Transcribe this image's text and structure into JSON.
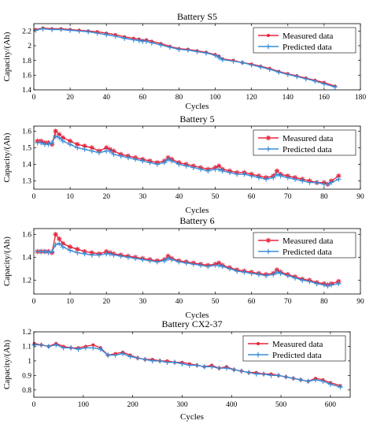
{
  "chart_data": [
    {
      "type": "line",
      "title": "Battery S5",
      "xlabel": "Cycles",
      "ylabel": "Capacity/(Ah)",
      "xlim": [
        0,
        180
      ],
      "ylim": [
        1.4,
        2.3
      ],
      "xticks": [
        0,
        20,
        40,
        60,
        80,
        100,
        120,
        140,
        160,
        180
      ],
      "yticks": [
        1.4,
        1.6,
        1.8,
        2.0,
        2.2
      ],
      "ytick_labels": [
        "1.4",
        "1.6",
        "1.8",
        "2",
        "2.2"
      ],
      "legend": {
        "position": "top-right",
        "entries": [
          "Measured data",
          "Predicted data"
        ]
      },
      "series": [
        {
          "name": "Measured data",
          "color": "#e8253a",
          "marker": "dot",
          "x": [
            1,
            5,
            10,
            15,
            20,
            25,
            30,
            35,
            40,
            45,
            50,
            55,
            58,
            60,
            62,
            65,
            70,
            75,
            80,
            85,
            90,
            95,
            100,
            102,
            104,
            110,
            115,
            120,
            125,
            130,
            135,
            140,
            145,
            150,
            155,
            160,
            166
          ],
          "y": [
            2.22,
            2.24,
            2.23,
            2.23,
            2.22,
            2.21,
            2.2,
            2.19,
            2.17,
            2.15,
            2.12,
            2.1,
            2.09,
            2.07,
            2.08,
            2.06,
            2.03,
            1.99,
            1.96,
            1.95,
            1.93,
            1.91,
            1.88,
            1.86,
            1.82,
            1.8,
            1.77,
            1.75,
            1.72,
            1.69,
            1.65,
            1.62,
            1.59,
            1.56,
            1.53,
            1.5,
            1.45
          ]
        },
        {
          "name": "Predicted data",
          "color": "#3b8ed8",
          "marker": "plus",
          "x": [
            1,
            5,
            10,
            15,
            20,
            25,
            30,
            35,
            40,
            45,
            50,
            55,
            58,
            60,
            62,
            65,
            70,
            75,
            80,
            85,
            90,
            95,
            100,
            102,
            104,
            110,
            115,
            120,
            125,
            130,
            135,
            140,
            145,
            150,
            155,
            160,
            166
          ],
          "y": [
            2.21,
            2.23,
            2.22,
            2.22,
            2.21,
            2.2,
            2.19,
            2.17,
            2.15,
            2.13,
            2.1,
            2.08,
            2.07,
            2.06,
            2.06,
            2.04,
            2.01,
            1.98,
            1.95,
            1.94,
            1.92,
            1.9,
            1.87,
            1.84,
            1.81,
            1.79,
            1.77,
            1.74,
            1.71,
            1.68,
            1.64,
            1.61,
            1.58,
            1.55,
            1.52,
            1.48,
            1.44
          ]
        }
      ]
    },
    {
      "type": "line",
      "title": "Battery 5",
      "xlabel": "Cycles",
      "ylabel": "Capacity/(Ah)",
      "xlim": [
        0,
        90
      ],
      "ylim": [
        1.25,
        1.63
      ],
      "xticks": [
        0,
        10,
        20,
        30,
        40,
        50,
        60,
        70,
        80,
        90
      ],
      "yticks": [
        1.3,
        1.4,
        1.5,
        1.6
      ],
      "ytick_labels": [
        "1.3",
        "1.4",
        "1.5",
        "1.6"
      ],
      "legend": {
        "position": "top-right",
        "entries": [
          "Measured data",
          "Predicted data"
        ]
      },
      "series": [
        {
          "name": "Measured data",
          "color": "#e8253a",
          "marker": "star",
          "x": [
            1,
            2,
            3,
            4,
            5,
            6,
            7,
            8,
            10,
            12,
            14,
            16,
            18,
            20,
            21,
            22,
            24,
            26,
            28,
            30,
            32,
            34,
            36,
            37,
            38,
            40,
            42,
            44,
            46,
            48,
            50,
            51,
            52,
            54,
            56,
            58,
            60,
            62,
            64,
            66,
            67,
            68,
            70,
            72,
            74,
            76,
            78,
            80,
            81,
            82,
            84
          ],
          "y": [
            1.54,
            1.54,
            1.53,
            1.53,
            1.52,
            1.6,
            1.58,
            1.56,
            1.54,
            1.52,
            1.51,
            1.5,
            1.48,
            1.5,
            1.49,
            1.48,
            1.46,
            1.45,
            1.44,
            1.43,
            1.42,
            1.41,
            1.42,
            1.44,
            1.43,
            1.41,
            1.4,
            1.39,
            1.38,
            1.37,
            1.38,
            1.39,
            1.37,
            1.36,
            1.35,
            1.35,
            1.34,
            1.33,
            1.32,
            1.33,
            1.36,
            1.34,
            1.33,
            1.32,
            1.31,
            1.3,
            1.29,
            1.29,
            1.28,
            1.3,
            1.33
          ]
        },
        {
          "name": "Predicted data",
          "color": "#3b8ed8",
          "marker": "plus",
          "x": [
            1,
            2,
            3,
            4,
            5,
            6,
            7,
            8,
            10,
            12,
            14,
            16,
            18,
            20,
            21,
            22,
            24,
            26,
            28,
            30,
            32,
            34,
            36,
            37,
            38,
            40,
            42,
            44,
            46,
            48,
            50,
            51,
            52,
            54,
            56,
            58,
            60,
            62,
            64,
            66,
            67,
            68,
            70,
            72,
            74,
            76,
            78,
            80,
            81,
            82,
            84
          ],
          "y": [
            1.53,
            1.53,
            1.52,
            1.52,
            1.53,
            1.57,
            1.56,
            1.54,
            1.52,
            1.5,
            1.49,
            1.48,
            1.47,
            1.48,
            1.48,
            1.46,
            1.45,
            1.44,
            1.43,
            1.42,
            1.41,
            1.4,
            1.41,
            1.43,
            1.42,
            1.4,
            1.39,
            1.38,
            1.37,
            1.36,
            1.37,
            1.37,
            1.36,
            1.35,
            1.34,
            1.34,
            1.33,
            1.32,
            1.31,
            1.32,
            1.34,
            1.33,
            1.32,
            1.31,
            1.3,
            1.29,
            1.29,
            1.28,
            1.28,
            1.29,
            1.31
          ]
        }
      ]
    },
    {
      "type": "line",
      "title": "Battery 6",
      "xlabel": "Cycles",
      "ylabel": "Capacity/(Ah)",
      "xlim": [
        0,
        90
      ],
      "ylim": [
        1.08,
        1.65
      ],
      "xticks": [
        0,
        10,
        20,
        30,
        40,
        50,
        60,
        70,
        80,
        90
      ],
      "yticks": [
        1.2,
        1.4,
        1.6
      ],
      "ytick_labels": [
        "1.2",
        "1.4",
        "1.6"
      ],
      "legend": {
        "position": "top-right",
        "entries": [
          "Measured data",
          "Predicted data"
        ]
      },
      "series": [
        {
          "name": "Measured data",
          "color": "#e8253a",
          "marker": "star",
          "x": [
            1,
            2,
            3,
            4,
            5,
            6,
            7,
            8,
            10,
            12,
            14,
            16,
            18,
            20,
            21,
            22,
            24,
            26,
            28,
            30,
            32,
            34,
            36,
            37,
            38,
            40,
            42,
            44,
            46,
            48,
            50,
            51,
            52,
            54,
            56,
            58,
            60,
            62,
            64,
            66,
            67,
            68,
            70,
            72,
            74,
            76,
            78,
            80,
            81,
            82,
            84
          ],
          "y": [
            1.45,
            1.45,
            1.45,
            1.45,
            1.44,
            1.6,
            1.56,
            1.52,
            1.49,
            1.47,
            1.45,
            1.44,
            1.43,
            1.45,
            1.44,
            1.43,
            1.42,
            1.41,
            1.4,
            1.39,
            1.38,
            1.37,
            1.38,
            1.41,
            1.39,
            1.37,
            1.36,
            1.35,
            1.34,
            1.33,
            1.34,
            1.35,
            1.33,
            1.31,
            1.29,
            1.28,
            1.27,
            1.26,
            1.25,
            1.26,
            1.29,
            1.27,
            1.25,
            1.23,
            1.21,
            1.2,
            1.18,
            1.17,
            1.16,
            1.17,
            1.19
          ]
        },
        {
          "name": "Predicted data",
          "color": "#3b8ed8",
          "marker": "plus",
          "x": [
            1,
            2,
            3,
            4,
            5,
            6,
            7,
            8,
            10,
            12,
            14,
            16,
            18,
            20,
            21,
            22,
            24,
            26,
            28,
            30,
            32,
            34,
            36,
            37,
            38,
            40,
            42,
            44,
            46,
            48,
            50,
            51,
            52,
            54,
            56,
            58,
            60,
            62,
            64,
            66,
            67,
            68,
            70,
            72,
            74,
            76,
            78,
            80,
            81,
            82,
            84
          ],
          "y": [
            1.45,
            1.45,
            1.45,
            1.44,
            1.45,
            1.51,
            1.52,
            1.49,
            1.46,
            1.44,
            1.43,
            1.42,
            1.42,
            1.43,
            1.43,
            1.42,
            1.41,
            1.4,
            1.39,
            1.38,
            1.37,
            1.36,
            1.37,
            1.39,
            1.38,
            1.36,
            1.35,
            1.34,
            1.33,
            1.32,
            1.33,
            1.33,
            1.32,
            1.3,
            1.28,
            1.27,
            1.26,
            1.25,
            1.24,
            1.25,
            1.27,
            1.26,
            1.24,
            1.22,
            1.2,
            1.19,
            1.17,
            1.16,
            1.15,
            1.16,
            1.17
          ]
        }
      ]
    },
    {
      "type": "line",
      "title": "Battery CX2-37",
      "xlabel": "Cycles",
      "ylabel": "Capacity/(Ah)",
      "xlim": [
        0,
        640
      ],
      "ylim": [
        0.75,
        1.2
      ],
      "xticks": [
        0,
        100,
        200,
        300,
        400,
        500,
        600
      ],
      "yticks": [
        0.8,
        0.9,
        1.0,
        1.1,
        1.2
      ],
      "ytick_labels": [
        "0.8",
        "0.9",
        "1",
        "1.1",
        "1.2"
      ],
      "legend": {
        "position": "top-right",
        "entries": [
          "Measured data",
          "Predicted data"
        ]
      },
      "series": [
        {
          "name": "Measured data",
          "color": "#e8253a",
          "marker": "dot",
          "x": [
            1,
            15,
            30,
            45,
            60,
            75,
            90,
            105,
            120,
            135,
            150,
            165,
            180,
            195,
            210,
            225,
            240,
            255,
            270,
            285,
            300,
            315,
            330,
            345,
            360,
            375,
            390,
            405,
            420,
            435,
            450,
            465,
            480,
            495,
            510,
            525,
            540,
            555,
            570,
            585,
            600,
            620
          ],
          "y": [
            1.12,
            1.11,
            1.1,
            1.12,
            1.1,
            1.09,
            1.09,
            1.1,
            1.11,
            1.09,
            1.04,
            1.05,
            1.06,
            1.04,
            1.02,
            1.01,
            1.01,
            1.0,
            1.0,
            0.99,
            0.99,
            0.98,
            0.97,
            0.96,
            0.97,
            0.95,
            0.96,
            0.94,
            0.93,
            0.92,
            0.92,
            0.91,
            0.91,
            0.9,
            0.89,
            0.88,
            0.87,
            0.86,
            0.88,
            0.87,
            0.85,
            0.83
          ]
        },
        {
          "name": "Predicted data",
          "color": "#3b8ed8",
          "marker": "plus",
          "x": [
            1,
            15,
            30,
            45,
            60,
            75,
            90,
            105,
            120,
            135,
            150,
            165,
            180,
            195,
            210,
            225,
            240,
            255,
            270,
            285,
            300,
            315,
            330,
            345,
            360,
            375,
            390,
            405,
            420,
            435,
            450,
            465,
            480,
            495,
            510,
            525,
            540,
            555,
            570,
            585,
            600,
            620
          ],
          "y": [
            1.11,
            1.11,
            1.1,
            1.11,
            1.09,
            1.09,
            1.08,
            1.09,
            1.09,
            1.08,
            1.04,
            1.04,
            1.05,
            1.03,
            1.02,
            1.01,
            1.0,
            1.0,
            0.99,
            0.99,
            0.98,
            0.97,
            0.97,
            0.96,
            0.96,
            0.95,
            0.95,
            0.94,
            0.93,
            0.92,
            0.91,
            0.91,
            0.9,
            0.9,
            0.89,
            0.88,
            0.87,
            0.86,
            0.87,
            0.86,
            0.84,
            0.82
          ]
        }
      ]
    }
  ]
}
